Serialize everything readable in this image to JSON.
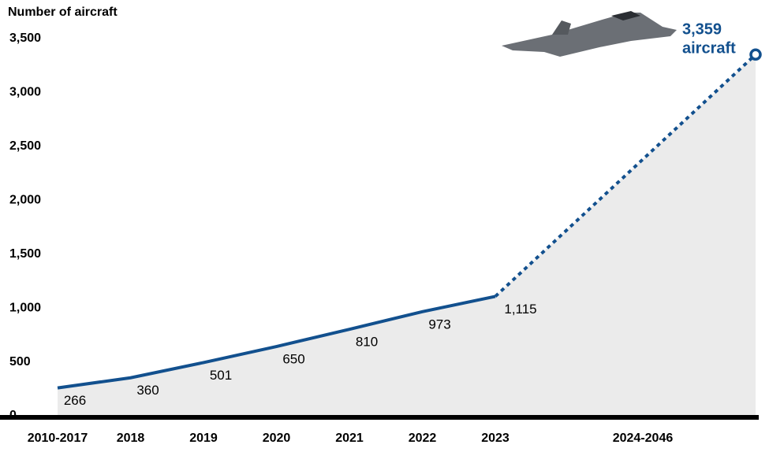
{
  "chart_data": {
    "type": "line",
    "y_axis_label": "Number of aircraft",
    "categories": [
      "2010-2017",
      "2018",
      "2019",
      "2020",
      "2021",
      "2022",
      "2023",
      "2024-2046"
    ],
    "values": [
      266,
      360,
      501,
      650,
      810,
      973,
      1115,
      3359
    ],
    "value_labels": [
      "266",
      "360",
      "501",
      "650",
      "810",
      "973",
      "1,115",
      "3,359"
    ],
    "end_annotation": "aircraft",
    "dashed_from": "2023",
    "color": "#12508e",
    "area_color": "#ebebeb",
    "ylim": [
      0,
      3500
    ],
    "yticks": [
      0,
      500,
      {
        "value": 1000,
        "label": "1,000"
      },
      {
        "value": 1500,
        "label": "1,500"
      },
      {
        "value": 2000,
        "label": "2,000"
      },
      {
        "value": 2500,
        "label": "2,500"
      },
      {
        "value": 3000,
        "label": "3,000"
      },
      {
        "value": 3500,
        "label": "3,500"
      }
    ]
  }
}
